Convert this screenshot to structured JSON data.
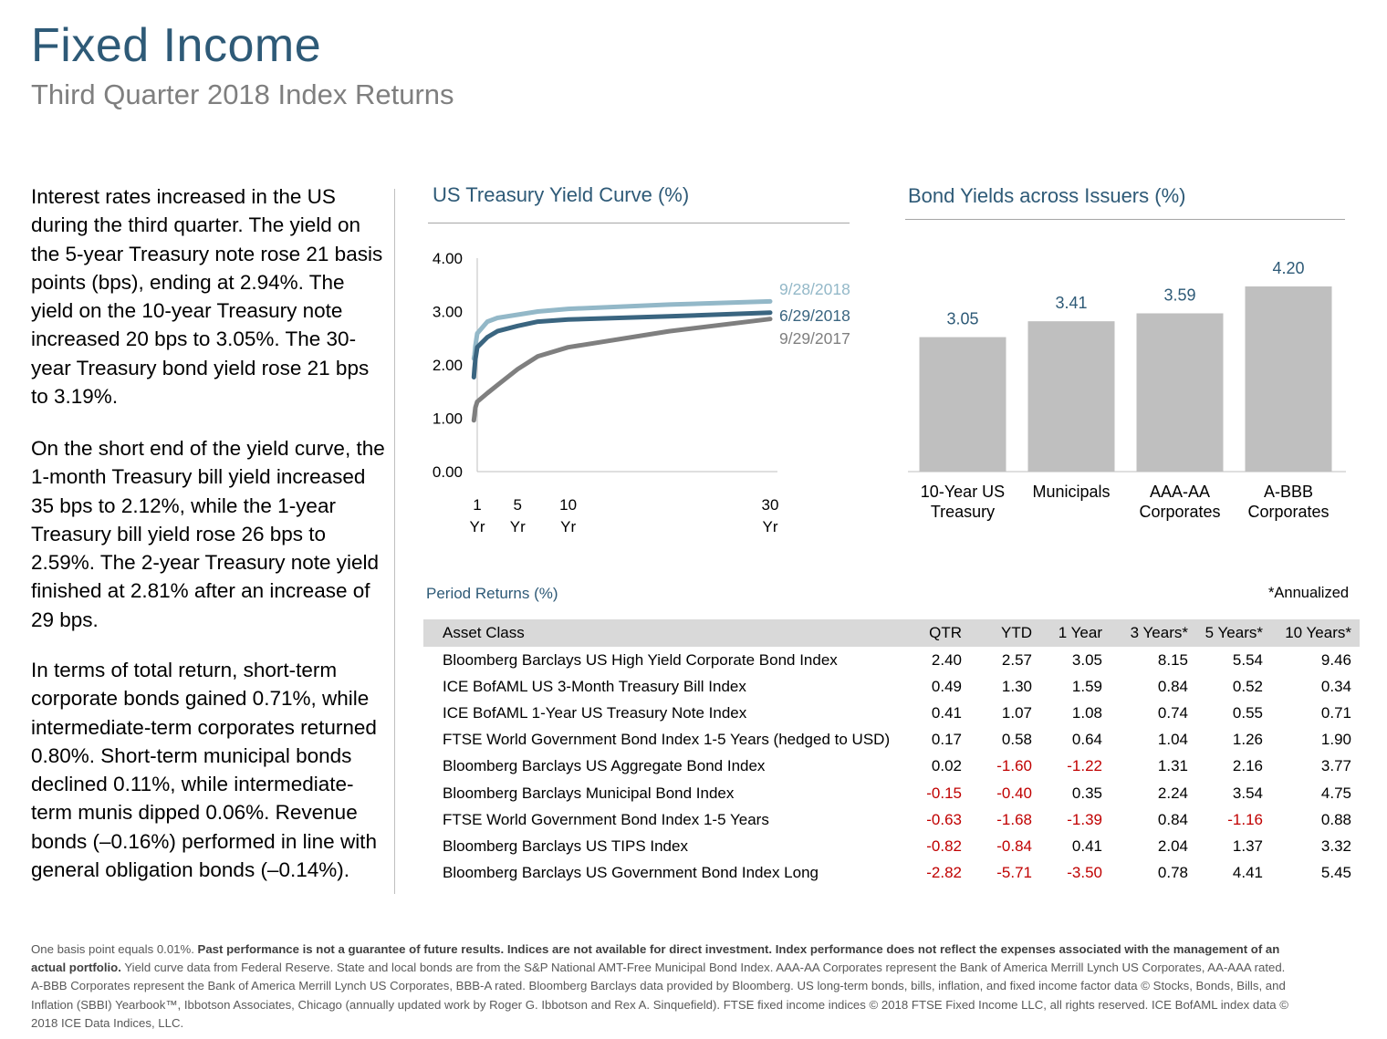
{
  "header": {
    "title": "Fixed Income",
    "subtitle": "Third Quarter 2018 Index Returns"
  },
  "commentary": [
    "Interest rates increased in the US during the third quarter. The yield on the 5-year Treasury note rose 21 basis points (bps), ending at 2.94%. The yield on the 10-year Treasury note increased 20 bps to 3.05%. The 30-year Treasury bond yield rose 21 bps to 3.19%.",
    "On the short end of the yield curve, the 1-month Treasury bill yield increased 35 bps to 2.12%, while the 1-year Treasury bill yield rose 26 bps to 2.59%. The 2-year Treasury note yield finished at 2.81% after an increase of 29 bps.",
    "In terms of total return, short-term corporate bonds gained 0.71%, while intermediate-term corporates returned 0.80%. Short-term municipal bonds declined 0.11%, while intermediate-term munis dipped 0.06%. Revenue bonds (–0.16%) performed in line with general obligation bonds (–0.14%)."
  ],
  "chart_data": [
    {
      "type": "line",
      "title": "US Treasury Yield Curve (%)",
      "xlabel": "",
      "ylabel": "",
      "x_ticks": [
        {
          "value": 1,
          "line1": "1",
          "line2": "Yr"
        },
        {
          "value": 5,
          "line1": "5",
          "line2": "Yr"
        },
        {
          "value": 10,
          "line1": "10",
          "line2": "Yr"
        },
        {
          "value": 30,
          "line1": "30",
          "line2": "Yr"
        }
      ],
      "y_ticks": [
        "4.00",
        "3.00",
        "2.00",
        "1.00",
        "0.00"
      ],
      "xlim": [
        1,
        30
      ],
      "ylim": [
        0,
        4
      ],
      "grid": false,
      "series": [
        {
          "name": "9/28/2018",
          "color": "#93b8c8",
          "x": [
            0.083,
            0.25,
            0.5,
            1,
            2,
            3,
            5,
            7,
            10,
            20,
            30
          ],
          "y": [
            2.12,
            2.19,
            2.36,
            2.59,
            2.81,
            2.88,
            2.94,
            3.0,
            3.05,
            3.13,
            3.19
          ]
        },
        {
          "name": "6/29/2018",
          "color": "#3a6580",
          "x": [
            0.083,
            0.25,
            0.5,
            1,
            2,
            3,
            5,
            7,
            10,
            20,
            30
          ],
          "y": [
            1.77,
            1.93,
            2.11,
            2.33,
            2.52,
            2.63,
            2.73,
            2.81,
            2.85,
            2.91,
            2.98
          ]
        },
        {
          "name": "9/29/2017",
          "color": "#7f7f7f",
          "x": [
            0.083,
            0.25,
            0.5,
            1,
            2,
            3,
            5,
            7,
            10,
            20,
            30
          ],
          "y": [
            0.96,
            1.06,
            1.2,
            1.31,
            1.47,
            1.62,
            1.92,
            2.16,
            2.33,
            2.63,
            2.86
          ]
        }
      ]
    },
    {
      "type": "bar",
      "title": "Bond Yields across Issuers (%)",
      "categories": [
        [
          "10-Year US",
          "Treasury"
        ],
        [
          "Municipals",
          ""
        ],
        [
          "AAA-AA",
          "Corporates"
        ],
        [
          "A-BBB",
          "Corporates"
        ]
      ],
      "values": [
        3.05,
        3.41,
        3.59,
        4.2
      ],
      "value_labels": [
        "3.05",
        "3.41",
        "3.59",
        "4.20"
      ],
      "bar_color": "#bfbfbf",
      "ylim": [
        0,
        4.2
      ],
      "grid": false
    }
  ],
  "returns": {
    "title": "Period Returns (%)",
    "note": "*Annualized",
    "columns": [
      "Asset Class",
      "QTR",
      "YTD",
      "1 Year",
      "3 Years*",
      "5 Years*",
      "10 Years*"
    ],
    "rows": [
      [
        "Bloomberg Barclays US High Yield Corporate Bond Index",
        "2.40",
        "2.57",
        "3.05",
        "8.15",
        "5.54",
        "9.46"
      ],
      [
        "ICE BofAML US 3-Month Treasury Bill Index",
        "0.49",
        "1.30",
        "1.59",
        "0.84",
        "0.52",
        "0.34"
      ],
      [
        "ICE BofAML 1-Year US Treasury Note Index",
        "0.41",
        "1.07",
        "1.08",
        "0.74",
        "0.55",
        "0.71"
      ],
      [
        "FTSE World Government Bond Index 1-5 Years (hedged to USD)",
        "0.17",
        "0.58",
        "0.64",
        "1.04",
        "1.26",
        "1.90"
      ],
      [
        "Bloomberg Barclays US Aggregate Bond Index",
        "0.02",
        "-1.60",
        "-1.22",
        "1.31",
        "2.16",
        "3.77"
      ],
      [
        "Bloomberg Barclays Municipal Bond Index",
        "-0.15",
        "-0.40",
        "0.35",
        "2.24",
        "3.54",
        "4.75"
      ],
      [
        "FTSE World Government Bond Index 1-5 Years",
        "-0.63",
        "-1.68",
        "-1.39",
        "0.84",
        "-1.16",
        "0.88"
      ],
      [
        "Bloomberg Barclays US TIPS Index",
        "-0.82",
        "-0.84",
        "0.41",
        "2.04",
        "1.37",
        "3.32"
      ],
      [
        "Bloomberg Barclays US Government Bond Index Long",
        "-2.82",
        "-5.71",
        "-3.50",
        "0.78",
        "4.41",
        "5.45"
      ]
    ],
    "negative_color": "#c00000"
  },
  "footer": {
    "part1": "One basis point equals 0.01%. ",
    "bold": "Past performance is not a guarantee of future results. Indices are not available for direct investment. Index performance does not reflect the expenses associated with the management of an actual portfolio.",
    "part2": " Yield curve data from Federal Reserve. State and local bonds are from the S&P National AMT-Free Municipal Bond Index. AAA-AA Corporates represent the Bank of America Merrill Lynch US Corporates, AA-AAA rated. A-BBB Corporates represent the Bank of America Merrill Lynch US Corporates, BBB-A rated. Bloomberg Barclays data provided by Bloomberg.  US long-term bonds, bills, inflation, and fixed income factor data © Stocks, Bonds, Bills, and Inflation (SBBI) Yearbook™, Ibbotson Associates, Chicago (annually updated work by Roger G. Ibbotson and Rex A. Sinquefield). FTSE fixed income indices © 2018 FTSE Fixed Income LLC, all rights reserved. ICE BofAML index data © 2018 ICE Data Indices, LLC."
  }
}
